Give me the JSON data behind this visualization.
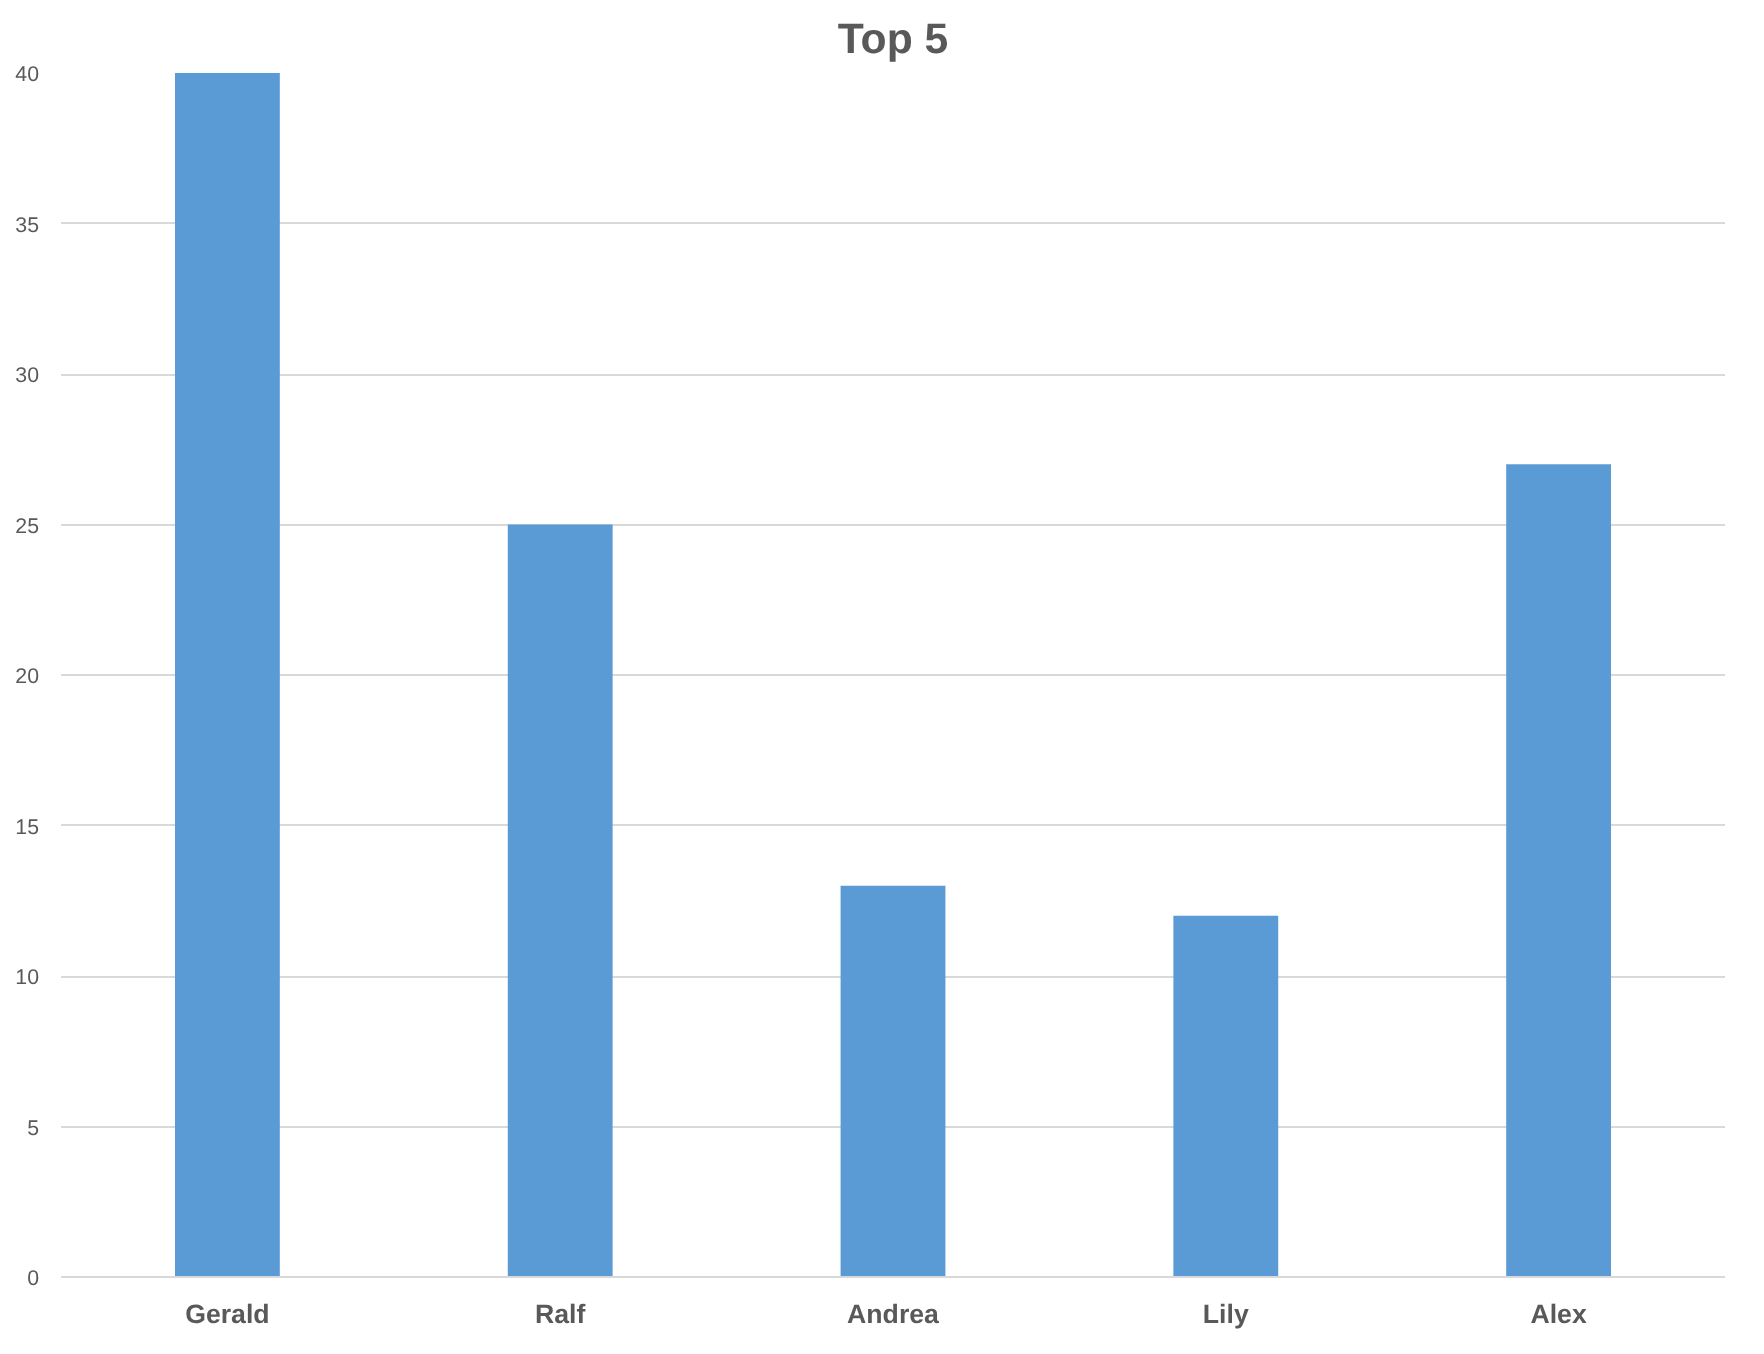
{
  "chart_data": {
    "type": "bar",
    "title": "Top 5",
    "categories": [
      "Gerald",
      "Ralf",
      "Andrea",
      "Lily",
      "Alex"
    ],
    "values": [
      40,
      25,
      13,
      12,
      27
    ],
    "color": "#5b9bd5",
    "ylim": [
      0,
      40
    ],
    "yticks": [
      0,
      5,
      10,
      15,
      20,
      25,
      30,
      35,
      40
    ],
    "grid": "y"
  }
}
